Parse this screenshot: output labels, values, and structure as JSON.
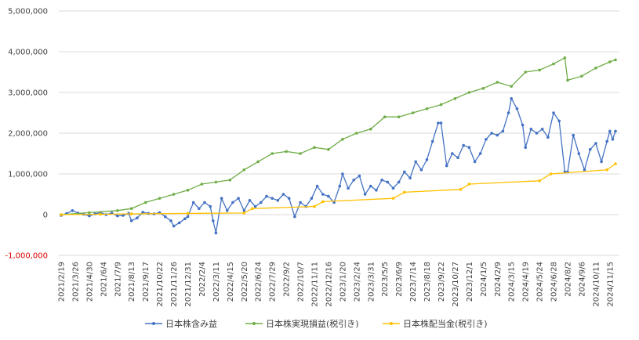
{
  "chart_data": {
    "type": "line",
    "title": "",
    "xlabel": "",
    "ylabel": "",
    "ylim": [
      -1000000,
      5000000
    ],
    "y_ticks": [
      {
        "value": 5000000,
        "label": "5,000,000"
      },
      {
        "value": 4000000,
        "label": "4,000,000"
      },
      {
        "value": 3000000,
        "label": "3,000,000"
      },
      {
        "value": 2000000,
        "label": "2,000,000"
      },
      {
        "value": 1000000,
        "label": "1,000,000"
      },
      {
        "value": 0,
        "label": "0"
      },
      {
        "value": -1000000,
        "label": "-1,000,000"
      }
    ],
    "negative_tick_color": "#e00000",
    "grid": true,
    "legend_position": "bottom",
    "x_ticks": [
      "2021/2/19",
      "2021/3/26",
      "2021/4/30",
      "2021/6/4",
      "2021/7/9",
      "2021/8/13",
      "2021/9/17",
      "2021/10/22",
      "2021/11/26",
      "2021/12/31",
      "2022/2/4",
      "2022/3/11",
      "2022/4/15",
      "2022/5/20",
      "2022/6/24",
      "2022/7/29",
      "2022/9/2",
      "2022/10/7",
      "2022/11/11",
      "2022/12/16",
      "2023/1/20",
      "2023/2/24",
      "2023/3/31",
      "2023/5/5",
      "2023/6/9",
      "2023/7/14",
      "2023/8/18",
      "2023/9/22",
      "2023/10/27",
      "2023/12/1",
      "2024/1/5",
      "2024/2/9",
      "2024/3/15",
      "2024/4/19",
      "2024/5/24",
      "2024/6/28",
      "2024/8/2",
      "2024/9/6",
      "2024/10/11",
      "2024/11/15"
    ],
    "x_start": "2021/2/19",
    "x_end": "2024/11/29",
    "series": [
      {
        "name": "日本株含み益",
        "color": "#4472c4",
        "points": [
          [
            "2021/2/19",
            -20000
          ],
          [
            "2021/3/5",
            30000
          ],
          [
            "2021/3/19",
            100000
          ],
          [
            "2021/4/2",
            40000
          ],
          [
            "2021/4/16",
            10000
          ],
          [
            "2021/4/30",
            -30000
          ],
          [
            "2021/5/14",
            20000
          ],
          [
            "2021/5/28",
            50000
          ],
          [
            "2021/6/11",
            0
          ],
          [
            "2021/6/25",
            40000
          ],
          [
            "2021/7/9",
            -30000
          ],
          [
            "2021/7/23",
            -20000
          ],
          [
            "2021/8/6",
            30000
          ],
          [
            "2021/8/13",
            -150000
          ],
          [
            "2021/8/27",
            -80000
          ],
          [
            "2021/9/10",
            60000
          ],
          [
            "2021/9/24",
            30000
          ],
          [
            "2021/10/8",
            20000
          ],
          [
            "2021/10/22",
            50000
          ],
          [
            "2021/11/5",
            -50000
          ],
          [
            "2021/11/19",
            -150000
          ],
          [
            "2021/11/26",
            -280000
          ],
          [
            "2021/12/10",
            -200000
          ],
          [
            "2021/12/24",
            -100000
          ],
          [
            "2021/12/31",
            -50000
          ],
          [
            "2022/1/14",
            300000
          ],
          [
            "2022/1/28",
            150000
          ],
          [
            "2022/2/11",
            300000
          ],
          [
            "2022/2/25",
            200000
          ],
          [
            "2022/3/4",
            -150000
          ],
          [
            "2022/3/11",
            -450000
          ],
          [
            "2022/3/25",
            400000
          ],
          [
            "2022/4/8",
            100000
          ],
          [
            "2022/4/22",
            300000
          ],
          [
            "2022/5/6",
            400000
          ],
          [
            "2022/5/20",
            100000
          ],
          [
            "2022/6/3",
            350000
          ],
          [
            "2022/6/17",
            200000
          ],
          [
            "2022/7/1",
            300000
          ],
          [
            "2022/7/15",
            450000
          ],
          [
            "2022/7/29",
            400000
          ],
          [
            "2022/8/12",
            350000
          ],
          [
            "2022/8/26",
            500000
          ],
          [
            "2022/9/9",
            400000
          ],
          [
            "2022/9/23",
            -50000
          ],
          [
            "2022/10/7",
            300000
          ],
          [
            "2022/10/21",
            200000
          ],
          [
            "2022/11/4",
            400000
          ],
          [
            "2022/11/18",
            700000
          ],
          [
            "2022/12/2",
            500000
          ],
          [
            "2022/12/16",
            450000
          ],
          [
            "2022/12/30",
            300000
          ],
          [
            "2023/1/13",
            700000
          ],
          [
            "2023/1/20",
            1000000
          ],
          [
            "2023/2/3",
            650000
          ],
          [
            "2023/2/17",
            850000
          ],
          [
            "2023/3/3",
            950000
          ],
          [
            "2023/3/17",
            500000
          ],
          [
            "2023/3/31",
            700000
          ],
          [
            "2023/4/14",
            600000
          ],
          [
            "2023/4/28",
            850000
          ],
          [
            "2023/5/12",
            800000
          ],
          [
            "2023/5/26",
            650000
          ],
          [
            "2023/6/9",
            800000
          ],
          [
            "2023/6/23",
            1050000
          ],
          [
            "2023/7/7",
            900000
          ],
          [
            "2023/7/21",
            1300000
          ],
          [
            "2023/8/4",
            1100000
          ],
          [
            "2023/8/18",
            1350000
          ],
          [
            "2023/9/1",
            1800000
          ],
          [
            "2023/9/15",
            2250000
          ],
          [
            "2023/9/22",
            2250000
          ],
          [
            "2023/10/6",
            1200000
          ],
          [
            "2023/10/20",
            1500000
          ],
          [
            "2023/11/3",
            1400000
          ],
          [
            "2023/11/17",
            1700000
          ],
          [
            "2023/12/1",
            1650000
          ],
          [
            "2023/12/15",
            1300000
          ],
          [
            "2023/12/29",
            1500000
          ],
          [
            "2024/1/12",
            1850000
          ],
          [
            "2024/1/26",
            2000000
          ],
          [
            "2024/2/9",
            1950000
          ],
          [
            "2024/2/23",
            2050000
          ],
          [
            "2024/3/8",
            2500000
          ],
          [
            "2024/3/15",
            2850000
          ],
          [
            "2024/3/29",
            2600000
          ],
          [
            "2024/4/12",
            2200000
          ],
          [
            "2024/4/19",
            1650000
          ],
          [
            "2024/5/3",
            2100000
          ],
          [
            "2024/5/17",
            2000000
          ],
          [
            "2024/5/31",
            2100000
          ],
          [
            "2024/6/14",
            1900000
          ],
          [
            "2024/6/28",
            2500000
          ],
          [
            "2024/7/12",
            2300000
          ],
          [
            "2024/7/26",
            1050000
          ],
          [
            "2024/8/2",
            1050000
          ],
          [
            "2024/8/16",
            1950000
          ],
          [
            "2024/8/30",
            1500000
          ],
          [
            "2024/9/13",
            1100000
          ],
          [
            "2024/9/27",
            1600000
          ],
          [
            "2024/10/11",
            1750000
          ],
          [
            "2024/10/25",
            1300000
          ],
          [
            "2024/11/8",
            1800000
          ],
          [
            "2024/11/15",
            2050000
          ],
          [
            "2024/11/22",
            1850000
          ],
          [
            "2024/11/29",
            2050000
          ]
        ]
      },
      {
        "name": "日本株実現損益(税引き)",
        "color": "#70ad47",
        "points": [
          [
            "2021/2/19",
            0
          ],
          [
            "2021/4/30",
            50000
          ],
          [
            "2021/7/9",
            100000
          ],
          [
            "2021/8/13",
            150000
          ],
          [
            "2021/9/17",
            300000
          ],
          [
            "2021/10/22",
            400000
          ],
          [
            "2021/11/26",
            500000
          ],
          [
            "2021/12/31",
            600000
          ],
          [
            "2022/2/4",
            750000
          ],
          [
            "2022/3/11",
            800000
          ],
          [
            "2022/4/15",
            850000
          ],
          [
            "2022/5/20",
            1100000
          ],
          [
            "2022/6/24",
            1300000
          ],
          [
            "2022/7/29",
            1500000
          ],
          [
            "2022/9/2",
            1550000
          ],
          [
            "2022/10/7",
            1500000
          ],
          [
            "2022/11/11",
            1650000
          ],
          [
            "2022/12/16",
            1600000
          ],
          [
            "2023/1/20",
            1850000
          ],
          [
            "2023/2/24",
            2000000
          ],
          [
            "2023/3/31",
            2100000
          ],
          [
            "2023/5/5",
            2400000
          ],
          [
            "2023/6/9",
            2400000
          ],
          [
            "2023/7/14",
            2500000
          ],
          [
            "2023/8/18",
            2600000
          ],
          [
            "2023/9/22",
            2700000
          ],
          [
            "2023/10/27",
            2850000
          ],
          [
            "2023/12/1",
            3000000
          ],
          [
            "2024/1/5",
            3100000
          ],
          [
            "2024/2/9",
            3250000
          ],
          [
            "2024/3/15",
            3150000
          ],
          [
            "2024/4/19",
            3500000
          ],
          [
            "2024/5/24",
            3550000
          ],
          [
            "2024/6/28",
            3700000
          ],
          [
            "2024/7/26",
            3850000
          ],
          [
            "2024/8/2",
            3300000
          ],
          [
            "2024/9/6",
            3400000
          ],
          [
            "2024/10/11",
            3600000
          ],
          [
            "2024/11/15",
            3750000
          ],
          [
            "2024/11/29",
            3800000
          ]
        ]
      },
      {
        "name": "日本株配当金(税引き)",
        "color": "#ffc000",
        "points": [
          [
            "2021/2/19",
            0
          ],
          [
            "2021/5/28",
            10000
          ],
          [
            "2021/8/13",
            20000
          ],
          [
            "2021/12/31",
            30000
          ],
          [
            "2022/5/20",
            40000
          ],
          [
            "2022/6/10",
            150000
          ],
          [
            "2022/11/11",
            200000
          ],
          [
            "2022/12/2",
            320000
          ],
          [
            "2023/5/26",
            400000
          ],
          [
            "2023/6/23",
            550000
          ],
          [
            "2023/11/10",
            620000
          ],
          [
            "2023/12/1",
            750000
          ],
          [
            "2024/5/24",
            830000
          ],
          [
            "2024/6/21",
            1000000
          ],
          [
            "2024/11/8",
            1100000
          ],
          [
            "2024/11/29",
            1250000
          ]
        ]
      }
    ]
  }
}
